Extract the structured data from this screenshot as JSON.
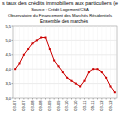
{
  "chart_data": {
    "type": "line",
    "title": "s taux des crédits immobiliers aux particuliers (e",
    "source": [
      "Source : Crédit Logement/CSA",
      "Observatoire du Financement des Marchés Résidentiels"
    ],
    "subtitle": "Ensemble des marchés",
    "categories": [
      "03-07",
      null,
      "09-07",
      null,
      "03-08",
      null,
      "09-08",
      null,
      "03-09",
      null,
      "09-09",
      null,
      "03-10",
      null,
      "09-10",
      null,
      "03-11",
      null,
      "09-11",
      null,
      "03-12",
      null,
      "09-12",
      null
    ],
    "series": [
      {
        "color": "#cc0000",
        "marker": "square",
        "line_style": "solid",
        "values": [
          4.0,
          4.2,
          4.5,
          4.7,
          4.9,
          5.0,
          5.1,
          5.1,
          4.7,
          4.3,
          4.1,
          3.9,
          3.7,
          3.6,
          3.5,
          3.4,
          3.6,
          3.9,
          4.0,
          4.0,
          3.9,
          3.7,
          3.4,
          3.2
        ]
      }
    ],
    "ylim": [
      3.0,
      5.5
    ],
    "yticks": [
      {
        "value": 3.0,
        "label": "3,0"
      },
      {
        "value": 3.5,
        "label": "3,5"
      },
      {
        "value": 4.0,
        "label": "4,0"
      },
      {
        "value": 4.5,
        "label": "4,5"
      },
      {
        "value": 5.0,
        "label": "5,0"
      },
      {
        "value": 5.5,
        "label": "5,5"
      }
    ],
    "grid": true
  }
}
